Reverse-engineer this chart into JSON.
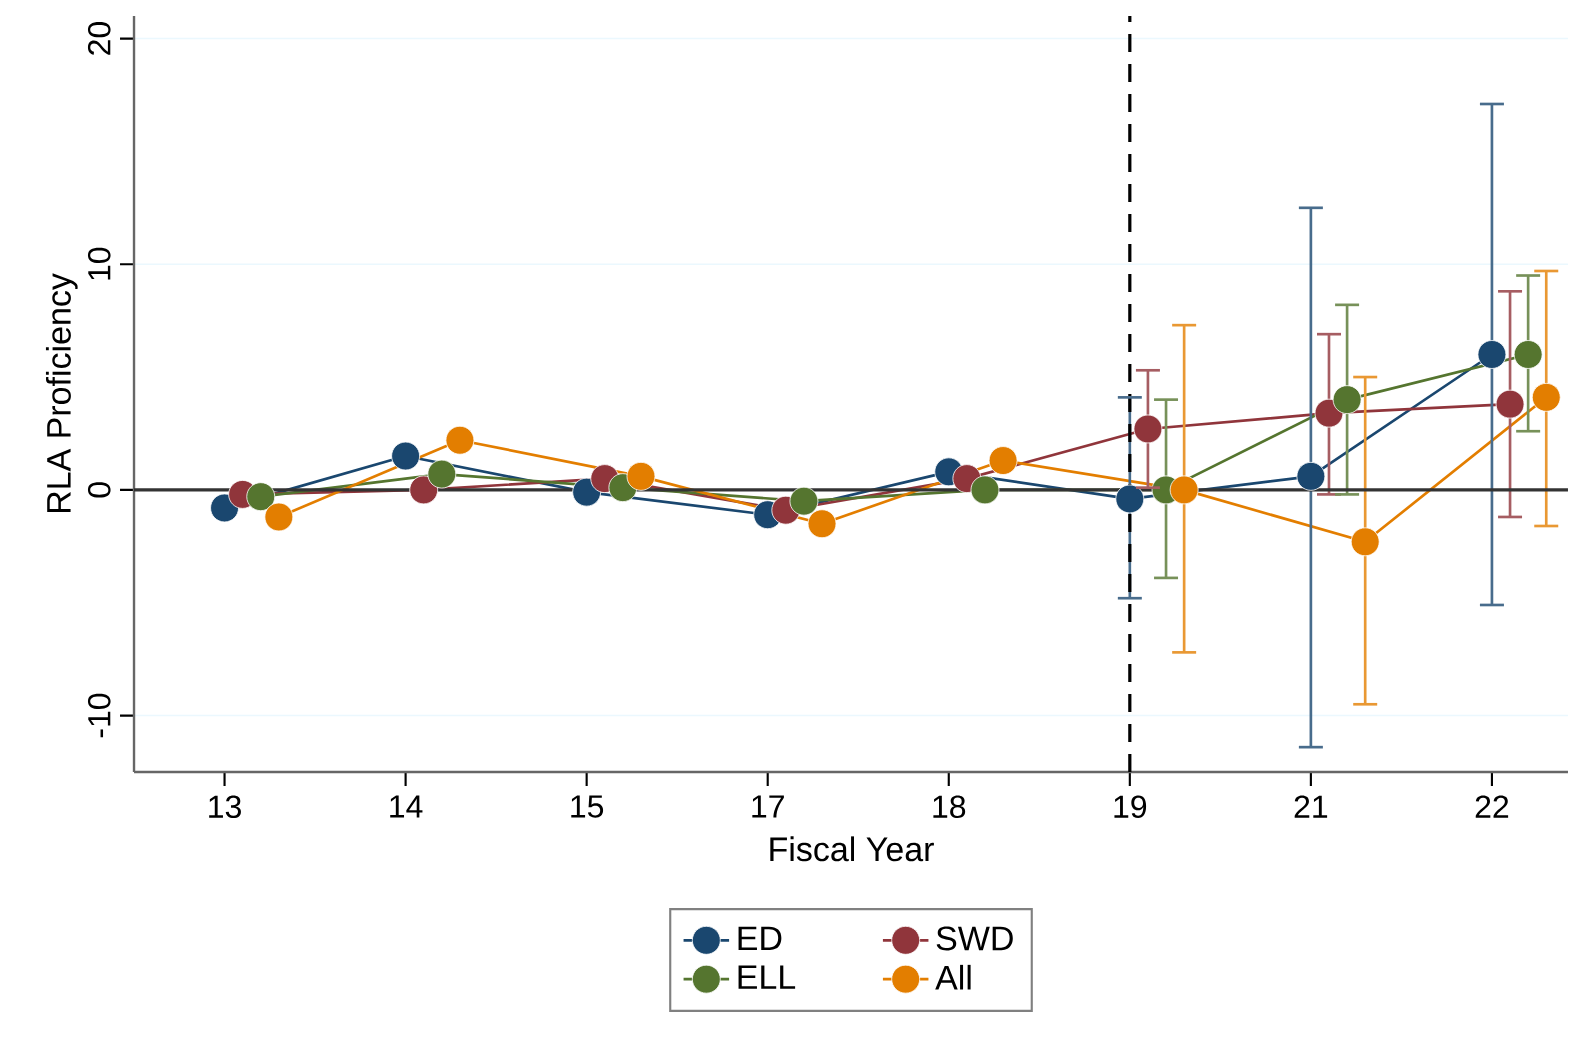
{
  "chart_data": {
    "type": "line",
    "xlabel": "Fiscal Year",
    "ylabel": "RLA Proficiency",
    "categories": [
      "13",
      "14",
      "15",
      "17",
      "18",
      "19",
      "21",
      "22"
    ],
    "ylim": [
      -12.5,
      21
    ],
    "yticks": [
      -10,
      0,
      10,
      20
    ],
    "grid": "y",
    "legend": "bottom",
    "marker": "circle",
    "line_style": "solid",
    "ref_lines": [
      {
        "axis": "y",
        "value": 0,
        "color": "#333333",
        "line_style": "solid"
      },
      {
        "axis": "x",
        "value": "19",
        "color": "#000000",
        "line_style": "dashed"
      }
    ],
    "series": [
      {
        "name": "ED",
        "color": "#1a476f",
        "values": [
          -0.8,
          1.5,
          -0.1,
          -1.1,
          0.8,
          -0.4,
          0.6,
          6.0
        ],
        "errors": [
          null,
          null,
          null,
          null,
          null,
          [
            -4.8,
            4.1
          ],
          [
            -11.4,
            12.5
          ],
          [
            -5.1,
            17.1
          ]
        ]
      },
      {
        "name": "SWD",
        "color": "#90353b",
        "values": [
          -0.2,
          0.0,
          0.5,
          -0.9,
          0.5,
          2.7,
          3.4,
          3.8
        ],
        "errors": [
          null,
          null,
          null,
          null,
          null,
          [
            0.1,
            5.3
          ],
          [
            -0.2,
            6.9
          ],
          [
            -1.2,
            8.8
          ]
        ]
      },
      {
        "name": "ELL",
        "color": "#55752f",
        "values": [
          -0.3,
          0.7,
          0.1,
          -0.5,
          0.0,
          0.0,
          4.0,
          6.0
        ],
        "errors": [
          null,
          null,
          null,
          null,
          null,
          [
            -3.9,
            4.0
          ],
          [
            -0.2,
            8.2
          ],
          [
            2.6,
            9.5
          ]
        ]
      },
      {
        "name": "All",
        "color": "#e37e00",
        "values": [
          -1.2,
          2.2,
          0.6,
          -1.5,
          1.3,
          0.0,
          -2.3,
          4.1
        ],
        "errors": [
          null,
          null,
          null,
          null,
          null,
          [
            -7.2,
            7.3
          ],
          [
            -9.5,
            5.0
          ],
          [
            -1.6,
            9.7
          ]
        ]
      }
    ]
  }
}
